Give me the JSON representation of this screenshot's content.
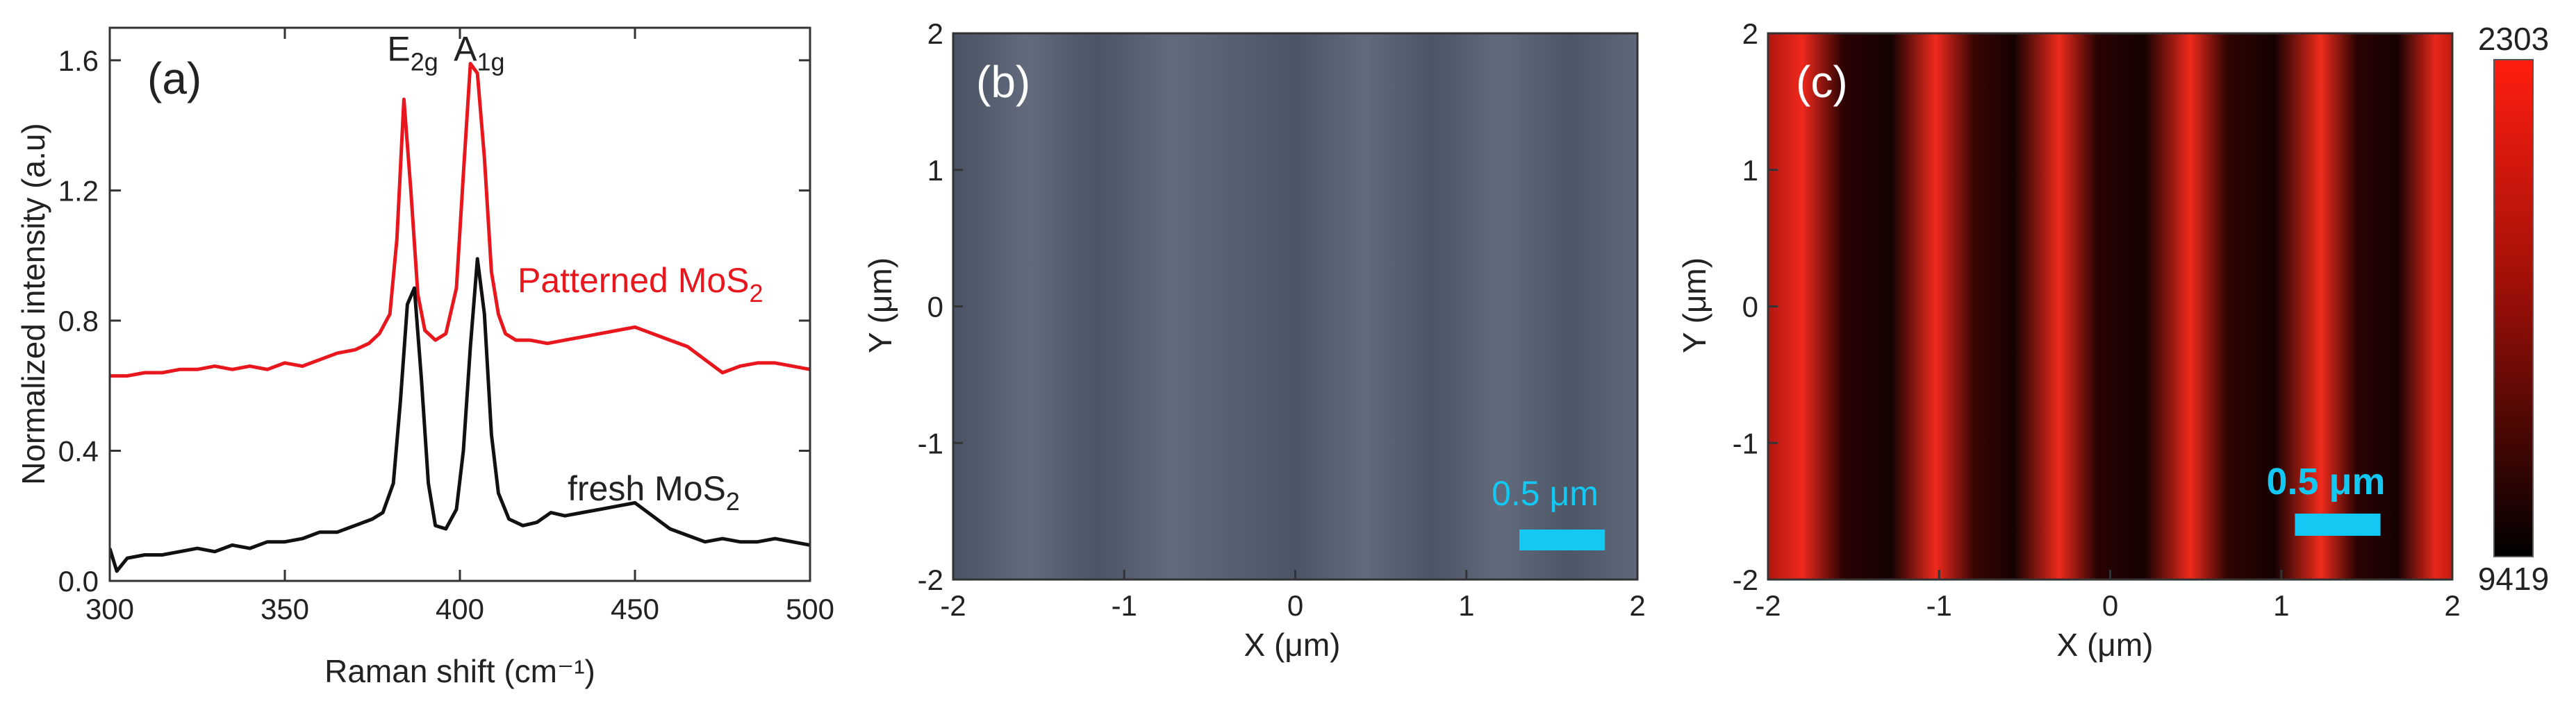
{
  "chart_data": [
    {
      "panel": "(a)",
      "type": "line",
      "xlabel": "Raman shift (cm⁻¹)",
      "ylabel": "Normalized intensity (a.u)",
      "xlim": [
        300,
        500
      ],
      "ylim": [
        0,
        1.7
      ],
      "xticks": [
        "300",
        "350",
        "400",
        "450",
        "500"
      ],
      "yticks": [
        "0.0",
        "0.4",
        "0.8",
        "1.2",
        "1.6"
      ],
      "annotations": [
        {
          "main": "E",
          "sub": "2g",
          "x": 384,
          "y": 1.62
        },
        {
          "main": "A",
          "sub": "1g",
          "x": 403,
          "y": 1.62
        }
      ],
      "series": [
        {
          "name_main": "Patterned MoS",
          "name_sub": "2",
          "color": "#e8161d",
          "x": [
            300,
            305,
            310,
            315,
            320,
            325,
            330,
            335,
            340,
            345,
            350,
            355,
            360,
            365,
            370,
            374,
            377,
            380,
            382,
            384,
            386,
            388,
            390,
            393,
            396,
            399,
            401,
            403,
            405,
            407,
            409,
            411,
            413,
            416,
            420,
            425,
            430,
            435,
            440,
            445,
            450,
            455,
            460,
            465,
            470,
            475,
            480,
            485,
            490,
            495,
            500
          ],
          "y": [
            0.63,
            0.63,
            0.64,
            0.64,
            0.65,
            0.65,
            0.66,
            0.65,
            0.66,
            0.65,
            0.67,
            0.66,
            0.68,
            0.7,
            0.71,
            0.73,
            0.76,
            0.82,
            1.05,
            1.48,
            1.2,
            0.88,
            0.77,
            0.74,
            0.76,
            0.9,
            1.25,
            1.59,
            1.56,
            1.3,
            0.95,
            0.82,
            0.76,
            0.74,
            0.74,
            0.73,
            0.74,
            0.75,
            0.76,
            0.77,
            0.78,
            0.76,
            0.74,
            0.72,
            0.68,
            0.64,
            0.66,
            0.67,
            0.67,
            0.66,
            0.65
          ]
        },
        {
          "name_main": "fresh MoS",
          "name_sub": "2",
          "color": "#111111",
          "x": [
            300,
            302,
            305,
            310,
            315,
            320,
            325,
            330,
            335,
            340,
            345,
            350,
            355,
            360,
            365,
            370,
            375,
            378,
            381,
            383,
            385,
            387,
            389,
            391,
            393,
            396,
            399,
            401,
            403,
            405,
            407,
            409,
            411,
            414,
            418,
            422,
            426,
            430,
            435,
            440,
            445,
            450,
            455,
            460,
            465,
            470,
            475,
            480,
            485,
            490,
            495,
            500
          ],
          "y": [
            0.1,
            0.03,
            0.07,
            0.08,
            0.08,
            0.09,
            0.1,
            0.09,
            0.11,
            0.1,
            0.12,
            0.12,
            0.13,
            0.15,
            0.15,
            0.17,
            0.19,
            0.21,
            0.3,
            0.55,
            0.85,
            0.9,
            0.62,
            0.3,
            0.17,
            0.16,
            0.22,
            0.4,
            0.72,
            0.99,
            0.82,
            0.45,
            0.27,
            0.19,
            0.17,
            0.18,
            0.21,
            0.2,
            0.21,
            0.22,
            0.23,
            0.24,
            0.2,
            0.16,
            0.14,
            0.12,
            0.13,
            0.12,
            0.12,
            0.13,
            0.12,
            0.11
          ]
        }
      ]
    },
    {
      "panel": "(b)",
      "type": "heatmap",
      "xlabel": "X (μm)",
      "ylabel": "Y (μm)",
      "xlim": [
        -2,
        2
      ],
      "ylim": [
        -2,
        2
      ],
      "xticks": [
        "-2",
        "-1",
        "0",
        "1",
        "2"
      ],
      "yticks": [
        "-2",
        "-1",
        "0",
        "1",
        "2"
      ],
      "scalebar": "0.5 μm",
      "scalebar_length": 0.5,
      "stripe_centers": [
        -1.7,
        -0.85,
        0.0,
        0.82,
        1.62
      ],
      "colors": {
        "base": "#5c6677",
        "stripe": "#4a5363",
        "scalebar": "#13c8f2"
      }
    },
    {
      "panel": "(c)",
      "type": "heatmap",
      "xlabel": "X (μm)",
      "ylabel": "Y (μm)",
      "xlim": [
        -2,
        2
      ],
      "ylim": [
        -2,
        2
      ],
      "xticks": [
        "-2",
        "-1",
        "0",
        "1",
        "2"
      ],
      "yticks": [
        "-2",
        "-1",
        "0",
        "1",
        "2"
      ],
      "scalebar": "0.5 μm",
      "scalebar_length": 0.5,
      "stripe_centers": [
        -1.78,
        -1.02,
        -0.3,
        0.47,
        1.23,
        1.9
      ],
      "colorbar": {
        "top": "2303",
        "bottom": "9419"
      },
      "colors": {
        "bright": "#f0281c",
        "dark": "#140201",
        "scalebar": "#13c8f2"
      }
    }
  ]
}
